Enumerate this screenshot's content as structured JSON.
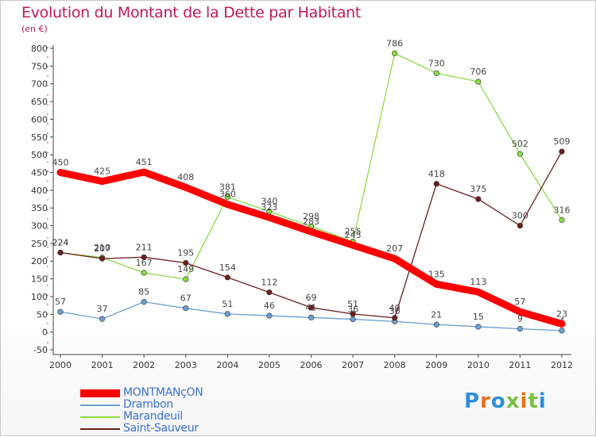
{
  "header": {
    "title": "Evolution du Montant de la Dette par Habitant",
    "subtitle": "(en €)"
  },
  "logo": {
    "text": "Proxiti"
  },
  "chart_data": {
    "type": "line",
    "title": "Evolution du Montant de la Dette par Habitant",
    "subtitle": "(en €)",
    "xlabel": "",
    "ylabel": "",
    "x": [
      "2000",
      "2001",
      "2002",
      "2003",
      "2004",
      "2005",
      "2006",
      "2007",
      "2008",
      "2009",
      "2010",
      "2011",
      "2012"
    ],
    "ylim": [
      -50,
      800
    ],
    "yticks": [
      -50,
      0,
      50,
      100,
      150,
      200,
      250,
      300,
      350,
      400,
      450,
      500,
      550,
      600,
      650,
      700,
      750,
      800
    ],
    "grid": false,
    "legend_position": "bottom-left",
    "series": [
      {
        "name": "MONTMANçON",
        "color": "#ff0000",
        "emphasis": true,
        "values": [
          450,
          425,
          451,
          408,
          360,
          323,
          283,
          245,
          207,
          135,
          113,
          57,
          23
        ],
        "labels": [
          "450",
          "425",
          "451",
          "408",
          "360",
          "323",
          "283",
          "245",
          "207",
          "135",
          "113",
          "57",
          "23"
        ]
      },
      {
        "name": "Drambon",
        "color": "#6a9fd4",
        "values": [
          57,
          37,
          85,
          67,
          51,
          46,
          41,
          36,
          30,
          21,
          15,
          9,
          4
        ],
        "labels": [
          "57",
          "37",
          "85",
          "67",
          "51",
          "46",
          "41",
          "36",
          "30",
          "21",
          "15",
          "9",
          "4"
        ]
      },
      {
        "name": "Marandeuil",
        "color": "#88dd44",
        "values": [
          224,
          210,
          167,
          149,
          381,
          340,
          298,
          255,
          786,
          730,
          706,
          502,
          316
        ],
        "labels": [
          "224",
          "210",
          "167",
          "149",
          "381",
          "340",
          "298",
          "255",
          "786",
          "730",
          "706",
          "502",
          "316"
        ]
      },
      {
        "name": "Saint-Sauveur",
        "color": "#6b1f1f",
        "values": [
          224,
          207,
          211,
          195,
          154,
          112,
          69,
          51,
          40,
          418,
          375,
          300,
          509
        ],
        "labels": [
          "224",
          "207",
          "211",
          "195",
          "154",
          "112",
          "69",
          "51",
          "40",
          "418",
          "375",
          "300",
          "509"
        ]
      }
    ]
  }
}
